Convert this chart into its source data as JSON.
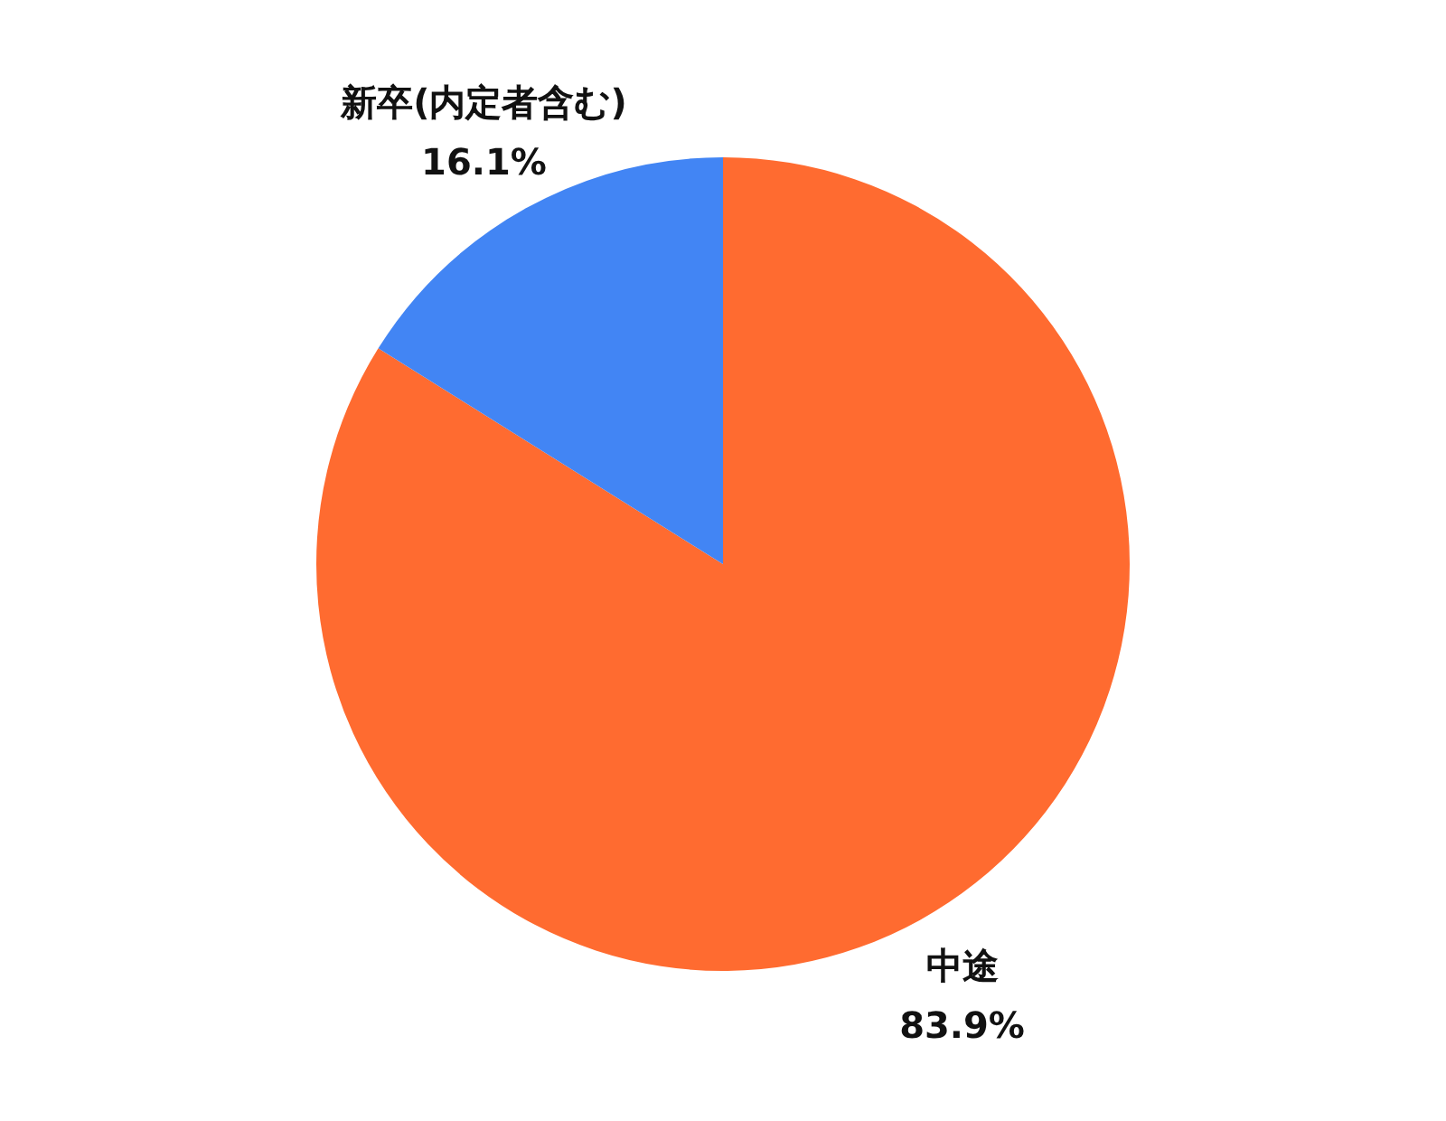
{
  "chart_data": {
    "type": "pie",
    "categories": [
      "中途",
      "新卒(内定者含む)"
    ],
    "values": [
      83.9,
      16.1
    ],
    "colors": [
      "#ff6b30",
      "#4285f4"
    ],
    "value_labels": [
      "83.9%",
      "16.1%"
    ],
    "legend": false
  }
}
